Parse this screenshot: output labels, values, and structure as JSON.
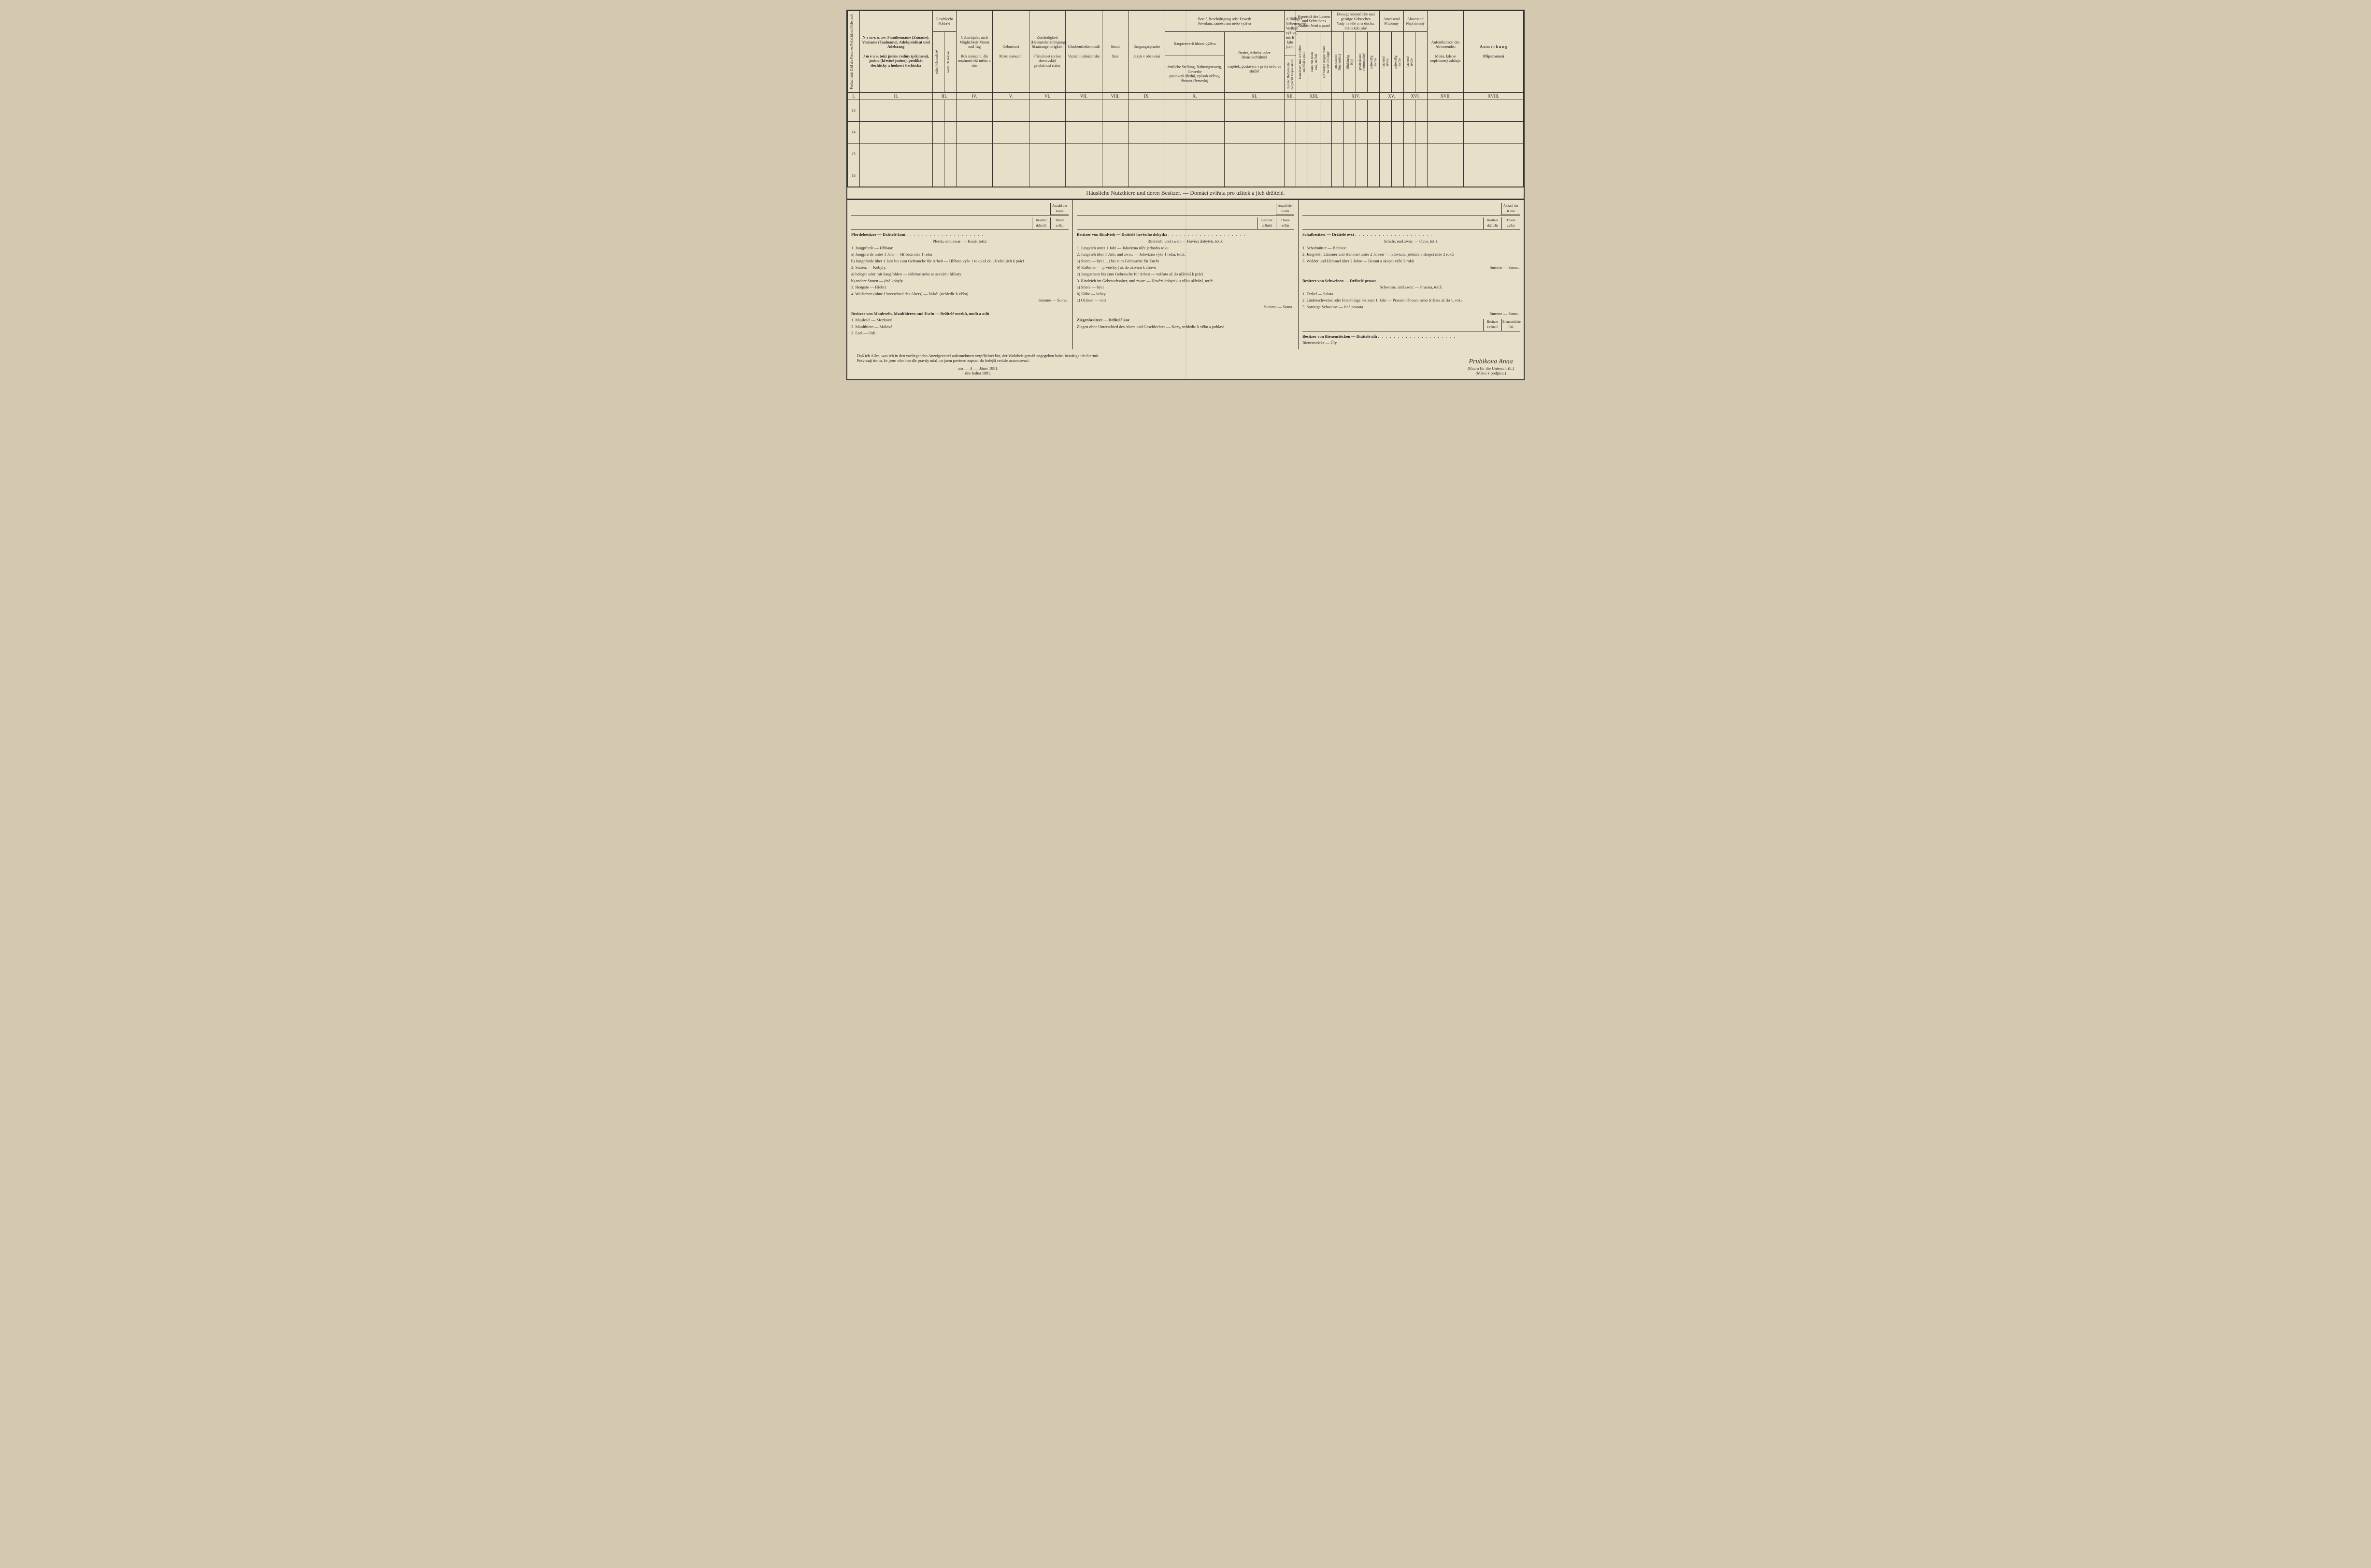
{
  "headers": {
    "col1": "Fortlaufende Zahl der Personen\nPořad jdoucí číslo osob",
    "col2_de": "N a m e,\nu. zw. Familienname (Zuname), Vorname (Taufname), Adelsprädicat und Adelsrang",
    "col2_cz": "J m é n o,\ntotiž jméno rodiny (příjmení), jméno (křestné jméno), predikát šlechtický a hodnost šlechtická",
    "col3": "Geschlecht\nPohlaví",
    "col3a": "männlich\nmužské",
    "col3b": "weiblich\nženské",
    "col4_de": "Geburtsjahr, nach Möglichkeit Monat und Tag",
    "col4_cz": "Rok narození, dle možnosti též měsíc a den",
    "col5_de": "Geburtsort",
    "col5_cz": "Místo narození",
    "col6_de": "Zuständigkeit (Heimatsberechtigung), Staatsangehörigkeit",
    "col6_cz": "Příslušnost (právo domovské) příslušnost státní",
    "col7_de": "Glaubensbekenntniß",
    "col7_cz": "Vyznání náboženské",
    "col8_de": "Stand",
    "col8_cz": "Stav",
    "col9_de": "Umgangssprache",
    "col9_cz": "Jazyk v obcování",
    "col10_title_de": "Beruf, Beschäftigung oder Erwerb",
    "col10_title_cz": "Povolání, zaměstnání nebo výživa",
    "col10a_de": "Haupterwerb\nhlavní výživa",
    "col10a_sub_de": "ämtliche Stellung, Nahrungszweig, Gewerbe",
    "col10a_sub_cz": "postavení úřední, způsob výživy, živnost (řemeslo)",
    "col10b_de": "Besitz, Arbeits- oder Dienstverhältniß",
    "col10b_cz": "majetek, postavení v práci nebo ve službě",
    "col12_de": "Allfälliger Nebenerwerb",
    "col12_cz": "Vedlejší výživa, má-li kdo jakou",
    "col13_de": "Kenntniß des Lesens und Schreibens",
    "col13_cz": "Znalost čtení a psaní",
    "col14_de": "Etwaige körperliche und geistige Gebrechen",
    "col14_cz": "Vady na těle a na duchu, má-li kdo jaké",
    "col15_de": "Anwesend",
    "col15_cz": "Přítomný",
    "col16_de": "Abwesend",
    "col16_cz": "Nepřítomný",
    "col17_de": "Aufenthaltsort des Abwesenden",
    "col17_cz": "Místo, kde se nepřítomný zdržuje",
    "col18_de": "A n m e r k u n g",
    "col18_cz": "Připomenutí"
  },
  "roman": [
    "I.",
    "II.",
    "III.",
    "IV.",
    "V.",
    "VI.",
    "VII.",
    "VIII.",
    "IX.",
    "X.",
    "XI.",
    "XII.",
    "XIII.",
    "XIV.",
    "XV.",
    "XVI.",
    "XVII.",
    "XVIII."
  ],
  "rows": [
    "13",
    "14",
    "15",
    "16"
  ],
  "section_title": "Häusliche Nutzthiere und deren Besitzer. — Domácí zvířata pro užitek a jich držitelé.",
  "count_header": {
    "title": "Anzahl der\nKolik",
    "left": "Besitzer\ndržitelů",
    "right": "Thiere\nzvířat"
  },
  "livestock": {
    "horses": {
      "title": "Pferdebesitzer — Držitelé koní",
      "sub": "Pferde, und zwar: — Koně, totiž:",
      "items": [
        "1. Jungpferde — Hříbata:",
        "a) Jungpferde unter 1 Jahr — Hříbata níže 1 roku",
        "b) Jungpferde über 1 Jahr bis zum Gebrauche für Arbeit — Hříbata výše 1 roku až do užívání jich k práci",
        "2. Stuten: — Kobyly:",
        "a) belegte oder mit Saugfohlen — shřebné nebo se ssavými hříbaty",
        "b) andere Stuten — jiné kobyly",
        "3. Hengste — Hřebci",
        "4. Wallachen (ohne Unterschied des Alters) — Valaši (nehledíc k věku)"
      ],
      "sum": "Summe — Suma ."
    },
    "mules": {
      "title": "Besitzer von Mauleseln, Maulthieren und Eseln — Držitelé mezků, mulů a oslů",
      "items": [
        "1. Maulesel — Mezkové",
        "2. Maulthiere — Mulové",
        "3. Esel — Osli"
      ]
    },
    "cattle": {
      "title": "Besitzer von Rindvieh — Držitelé hovězího dobytka",
      "sub": "Rindvieh, und zwar: — Hovězí dobytek, totiž:",
      "items": [
        "1. Jungvieh unter 1 Jahr — Jalovizna níže jednoho roku",
        "2. Jungvieh über 1 Jahr, und zwar: — Jalovizna výše 1 roku, totiž:",
        "a) Stiere — býci . . | bis zum Gebrauche für Zucht",
        "b) Kalbinen — prvničky | až do užívání k chovu",
        "c) Jungochsen bis zum Gebrauche für Arbeit — volčata až do užívání k práci",
        "3. Rindvieh im Gebrauchsalter, und zwar: — Hovězí dobytek u věku užívání, totiž:",
        "a) Stiere — býci",
        "b) Kühe — krávy",
        "c) Ochsen — voli"
      ],
      "sum": "Summe — Suma ."
    },
    "goats": {
      "title": "Ziegenbesitzer — Držitelé koz",
      "item": "Ziegen ohne Unterschied des Alters und Geschlechtes — Kozy, nehledíc k věku a pohlaví"
    },
    "sheep": {
      "title": "Schafbesitzer — Držitelé ovcí",
      "sub": "Schafe, und zwar: — Ovce, totiž:",
      "items": [
        "1. Schafmütter — Bahnice",
        "2. Jungvieh, Lämmer und Hämmel unter 2 Jahren — Jalovizna, jehňata a skopci níže 2 roků",
        "3. Widder und Hämmel über 2 Jahre — Berani a skopci výše 2 roků"
      ],
      "sum": "Summe — Suma ."
    },
    "pigs": {
      "title": "Besitzer von Schweinen — Držitelé prasat",
      "sub": "Schweine, und zwar: — Prasata, totiž:",
      "items": [
        "1. Ferkel — Salata",
        "2. Läuferschweine oder Frischlinge bis zum 1. Jahr — Prasata běhouni nebo frišlata až do 1. roku",
        "3. Sonstige Schweine — Jiná prasata"
      ],
      "sum": "Summe — Suma ."
    },
    "bees": {
      "title": "Besitzer von Bienenstöcken — Držitelé úlů",
      "item": "Bienenstöcke — Úly",
      "extra": "Besitzer\nDržitelů",
      "extra2": "Bienenstöcke\nÚlů"
    }
  },
  "footer": {
    "declaration_de": "Daß ich Alles, was ich in den vorliegenden Anzeigezettel aufzunehmen verpflichtet bin, der Wahrheit gemäß angegeben habe, bestätige ich hiermit.",
    "declaration_cz": "Potvrzuji tímto, že jsem všechno dle pravdy udal, co jsem povinen zapsati do hořejší cedule oznamovací.",
    "date_de": "am ___3___ Jäner 1881.",
    "date_cz": "dne        ledna 1881.",
    "signature": "Prubikova Anna",
    "sig_note_de": "(Raum für die Unterschrift.)",
    "sig_note_cz": "(Místo k podpisu.)"
  }
}
